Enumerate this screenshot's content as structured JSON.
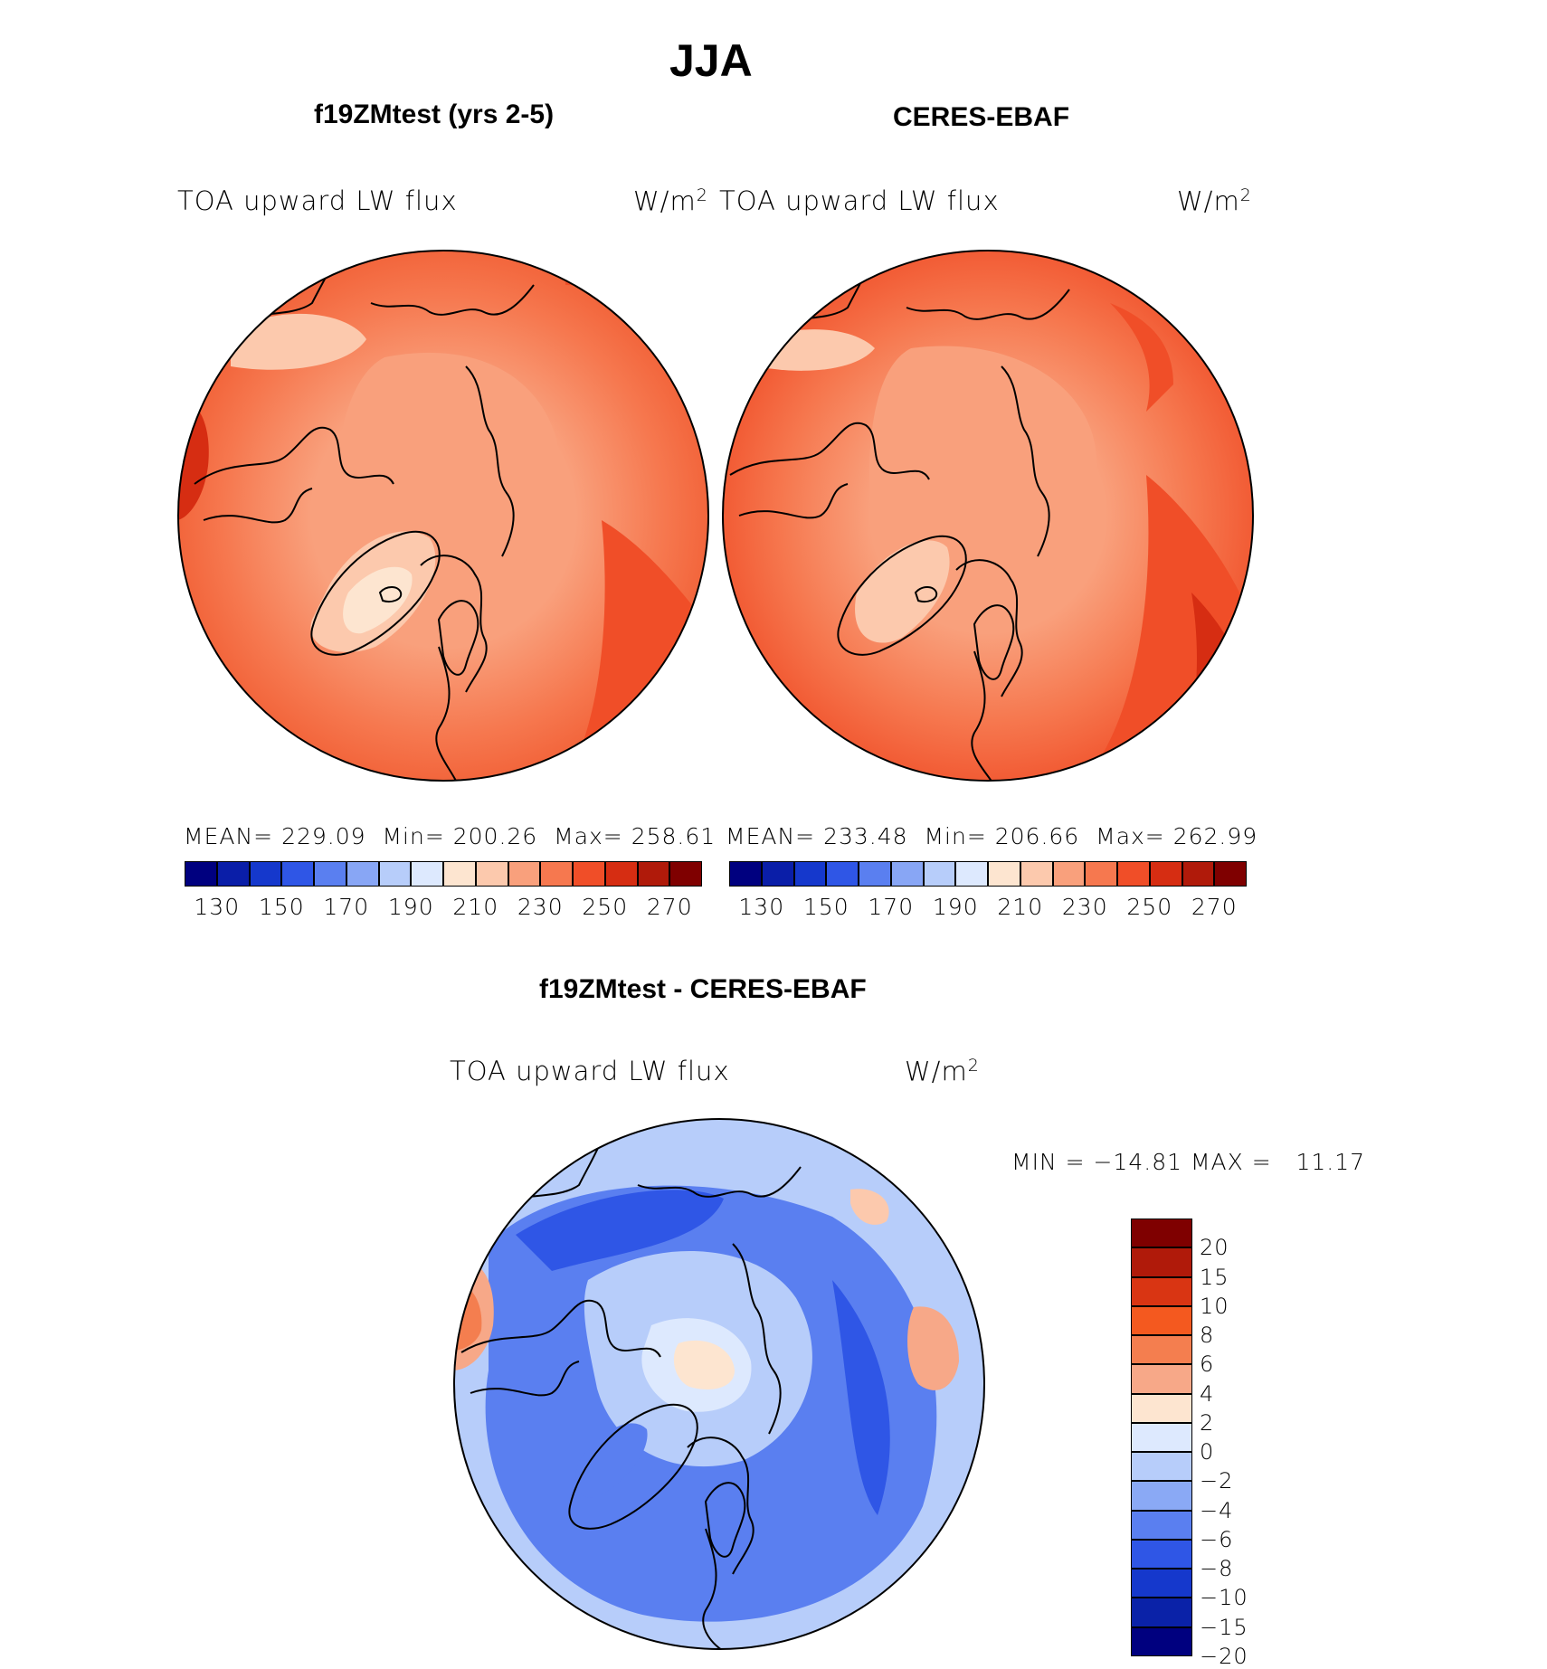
{
  "page_title": "JJA",
  "colors": {
    "sequential": [
      "#00007f",
      "#0a1ea8",
      "#1538cc",
      "#2f56e6",
      "#5a7ff0",
      "#88a6f5",
      "#b7cdfa",
      "#dde9fe",
      "#fde5d0",
      "#fcc9ad",
      "#f9a07c",
      "#f6784f",
      "#f04e28",
      "#d62d12",
      "#b01a0a",
      "#7f0000"
    ],
    "diverging": [
      "#7f0000",
      "#b01a0a",
      "#d93513",
      "#f4591f",
      "#f47e4f",
      "#f7a888",
      "#fde5d0",
      "#dde9fe",
      "#b7cdfa",
      "#8aa9f5",
      "#5a7ff0",
      "#2f56e6",
      "#1538cc",
      "#0a22a8",
      "#00007f"
    ]
  },
  "panels": {
    "model": {
      "title": "f19ZMtest (yrs 2-5)",
      "variable": "TOA upward LW flux",
      "units": "W/m",
      "units_exp": "2",
      "mean_label": "MEAN=",
      "mean": "229.09",
      "min_label": "Min=",
      "min": "200.26",
      "max_label": "Max=",
      "max": "258.61"
    },
    "obs": {
      "title": "CERES-EBAF",
      "variable": "TOA upward LW flux",
      "units": "W/m",
      "units_exp": "2",
      "mean_label": "MEAN=",
      "mean": "233.48",
      "min_label": "Min=",
      "min": "206.66",
      "max_label": "Max=",
      "max": "262.99"
    },
    "diff": {
      "title": "f19ZMtest - CERES-EBAF",
      "variable": "TOA upward LW flux",
      "units": "W/m",
      "units_exp": "2",
      "minmax_text": "MIN = −14.81 MAX =   11.17"
    }
  },
  "chart_data": [
    {
      "type": "heatmap",
      "title": "f19ZMtest (yrs 2-5)",
      "projection": "north polar stereographic",
      "field": "TOA upward LW flux",
      "units": "W/m2",
      "mean": 229.09,
      "min": 200.26,
      "max": 258.61,
      "colorbar_ticks": [
        "130",
        "150",
        "170",
        "190",
        "210",
        "230",
        "250",
        "270"
      ],
      "colorbar_levels": [
        120,
        130,
        140,
        150,
        160,
        170,
        180,
        190,
        200,
        210,
        220,
        230,
        240,
        250,
        260,
        270,
        280
      ]
    },
    {
      "type": "heatmap",
      "title": "CERES-EBAF",
      "projection": "north polar stereographic",
      "field": "TOA upward LW flux",
      "units": "W/m2",
      "mean": 233.48,
      "min": 206.66,
      "max": 262.99,
      "colorbar_ticks": [
        "130",
        "150",
        "170",
        "190",
        "210",
        "230",
        "250",
        "270"
      ],
      "colorbar_levels": [
        120,
        130,
        140,
        150,
        160,
        170,
        180,
        190,
        200,
        210,
        220,
        230,
        240,
        250,
        260,
        270,
        280
      ]
    },
    {
      "type": "heatmap",
      "title": "f19ZMtest - CERES-EBAF",
      "projection": "north polar stereographic",
      "field": "TOA upward LW flux",
      "units": "W/m2",
      "min": -14.81,
      "max": 11.17,
      "colorbar_ticks": [
        "20",
        "15",
        "10",
        "8",
        "6",
        "4",
        "2",
        "0",
        "−2",
        "−4",
        "−6",
        "−8",
        "−10",
        "−15",
        "−20"
      ]
    }
  ]
}
